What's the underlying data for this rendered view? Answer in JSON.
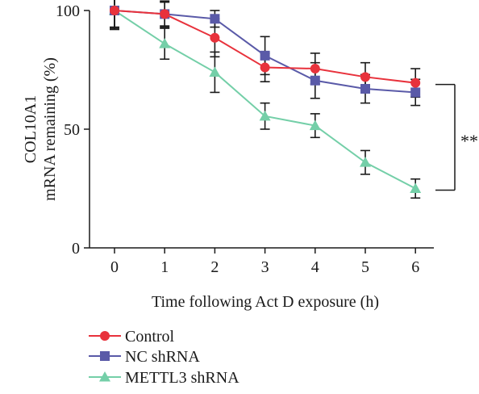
{
  "chart_data": {
    "type": "line",
    "xlabel": "Time following Act D exposure (h)",
    "ylabel_lines": [
      "COL10A1",
      "mRNA remaining (%)"
    ],
    "x": [
      0,
      1,
      2,
      3,
      4,
      5,
      6
    ],
    "xticks": [
      "0",
      "1",
      "2",
      "3",
      "4",
      "5",
      "6"
    ],
    "yticks": [
      "0",
      "50",
      "100"
    ],
    "ytick_values": [
      0,
      50,
      100
    ],
    "xlim": [
      -0.5,
      6.5
    ],
    "ylim": [
      0,
      100
    ],
    "grid": false,
    "legend_position": "bottom-left",
    "series": [
      {
        "name": "Control",
        "color": "#e8323c",
        "marker": "circle",
        "values": [
          100,
          98.5,
          88.5,
          76,
          75.5,
          72,
          69.5
        ],
        "errors": [
          8,
          5.5,
          8,
          6,
          6.5,
          6,
          6
        ]
      },
      {
        "name": "NC shRNA",
        "color": "#5a5aa8",
        "marker": "square",
        "values": [
          100,
          98.5,
          96.5,
          81,
          70.5,
          67,
          65.5
        ],
        "errors": [
          7.5,
          5,
          3.5,
          8,
          7.5,
          6,
          5.5
        ]
      },
      {
        "name": "METTL3 shRNA",
        "color": "#74cfa8",
        "marker": "triangle",
        "values": [
          100,
          86,
          74,
          55.5,
          51.5,
          36,
          25
        ],
        "errors": [
          7,
          6.5,
          8.5,
          5.5,
          5,
          5,
          4
        ]
      }
    ],
    "annotations": [
      {
        "text": "**",
        "between_series": [
          "Control",
          "METTL3 shRNA"
        ],
        "at_x": 6
      }
    ]
  }
}
